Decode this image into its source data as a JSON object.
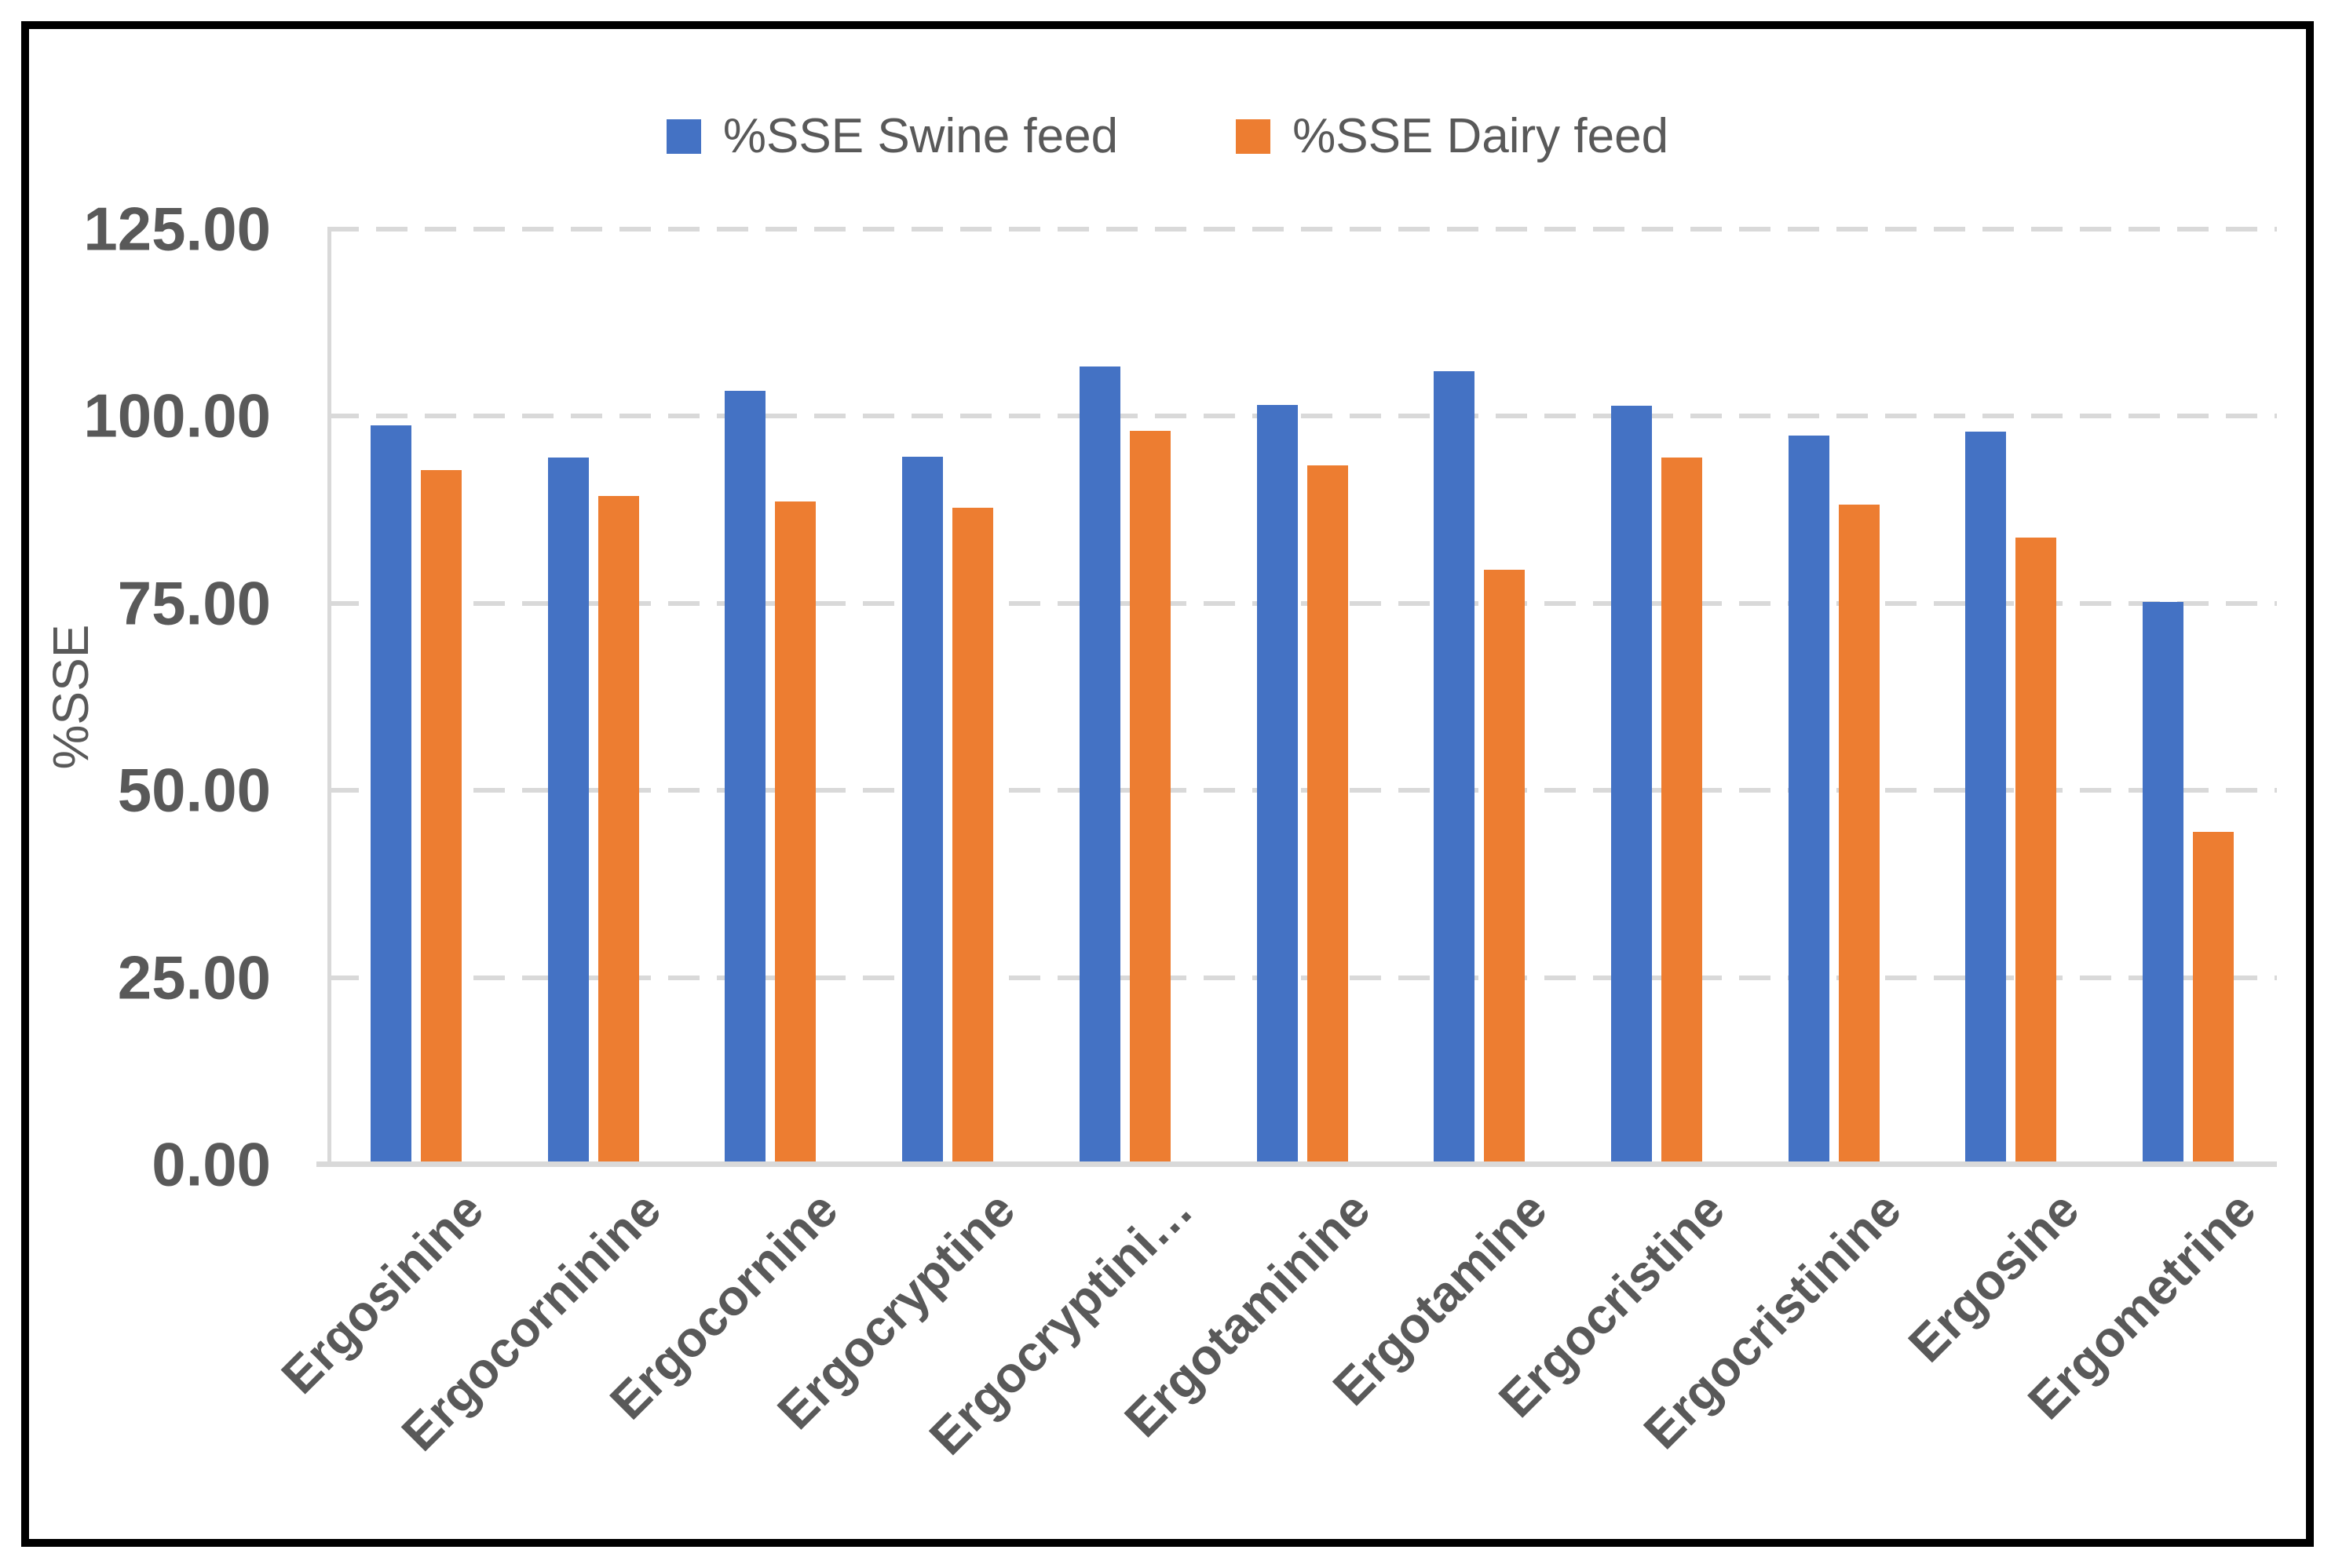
{
  "chart": {
    "y_axis_title": "%SSE"
  },
  "legend": {
    "items": [
      {
        "label": "%SSE Swine feed",
        "color": "#4472C4"
      },
      {
        "label": "%SSE Dairy feed",
        "color": "#ED7D31"
      }
    ]
  },
  "chart_data": {
    "type": "bar",
    "title": "",
    "xlabel": "",
    "ylabel": "%SSE",
    "ylim": [
      0,
      125
    ],
    "y_ticks": [
      "125.00",
      "100.00",
      "75.00",
      "50.00",
      "25.00",
      "0.00"
    ],
    "grid": "horizontal-dashed",
    "legend_position": "top",
    "categories": [
      "Ergosinine",
      "Ergocorninine",
      "Ergocornine",
      "Ergocryptine",
      "Ergocryptini…",
      "Ergotaminine",
      "Ergotamine",
      "Ergocristine",
      "Ergocristinine",
      "Ergosine",
      "Ergometrine"
    ],
    "series": [
      {
        "name": "%SSE Swine feed",
        "color": "#4472C4",
        "values": [
          98.8,
          94.5,
          103.4,
          94.6,
          106.6,
          101.5,
          106.0,
          101.4,
          97.4,
          97.9,
          75.2
        ]
      },
      {
        "name": "%SSE Dairy feed",
        "color": "#ED7D31",
        "values": [
          92.8,
          89.3,
          88.6,
          87.8,
          98.0,
          93.4,
          79.5,
          94.5,
          88.2,
          83.8,
          44.5
        ]
      }
    ]
  },
  "colors": {
    "text": "#595959",
    "gridline": "#D9D9D9",
    "axis_line": "#D9D9D9",
    "border": "#000000",
    "background": "#FFFFFF"
  }
}
